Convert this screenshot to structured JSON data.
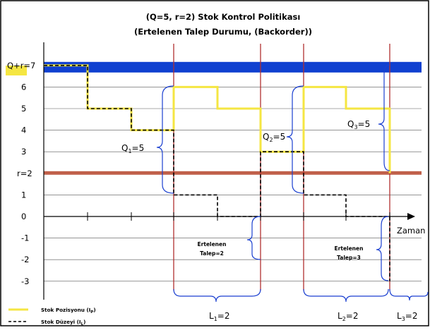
{
  "title": {
    "line1": "(Q=5, r=2) Stok Kontrol Politikası",
    "line2": "(Ertelenen Talep Durumu, (Backorder))"
  },
  "y_axis": {
    "ticks": [
      {
        "value": 7,
        "label": "Q+r=7"
      },
      {
        "value": 6,
        "label": "6"
      },
      {
        "value": 5,
        "label": "5"
      },
      {
        "value": 4,
        "label": "4"
      },
      {
        "value": 3,
        "label": "3"
      },
      {
        "value": 2,
        "label": "r=2"
      },
      {
        "value": 1,
        "label": "1"
      },
      {
        "value": 0,
        "label": "0"
      },
      {
        "value": -1,
        "label": "-1"
      },
      {
        "value": -2,
        "label": "-2"
      },
      {
        "value": -3,
        "label": "-3"
      }
    ]
  },
  "x_axis": {
    "label": "Zaman"
  },
  "reference_lines": {
    "max_level": 7,
    "reorder_point": 2
  },
  "colors": {
    "position_line": "#f5e642",
    "level_line": "#000000",
    "max_band": "#1040d0",
    "reorder_band": "#c0604a",
    "order_lines": "#b03030",
    "brace": "#1a3fd0",
    "highlight_box": "#f5e642"
  },
  "annotations": {
    "q1": {
      "text": "Q",
      "sub": "1",
      "tail": "=5"
    },
    "q2": {
      "text": "Q",
      "sub": "2",
      "tail": "=5"
    },
    "q3": {
      "text": "Q",
      "sub": "3",
      "tail": "=5"
    },
    "backorder1": {
      "line1": "Ertelenen",
      "line2": "Talep=2"
    },
    "backorder2": {
      "line1": "Ertelenen",
      "line2": "Talep=3"
    },
    "l1": {
      "text": "L",
      "sub": "1",
      "tail": "=2"
    },
    "l2": {
      "text": "L",
      "sub": "2",
      "tail": "=2"
    },
    "l3": {
      "text": "L",
      "sub": "3",
      "tail": "=2"
    }
  },
  "legend": [
    {
      "name": "Stok Pozisyonu (I",
      "sub": "P",
      "close": ")",
      "style": "solid-yellow"
    },
    {
      "name": "Stok Düzeyi (I",
      "sub": "L",
      "close": ")",
      "style": "dashed-black"
    }
  ],
  "series": {
    "stock_position": [
      [
        0,
        7
      ],
      [
        1,
        7
      ],
      [
        1,
        5
      ],
      [
        2,
        5
      ],
      [
        2,
        4
      ],
      [
        3,
        4
      ],
      [
        3,
        6
      ],
      [
        4,
        6
      ],
      [
        4,
        5
      ],
      [
        5,
        5
      ],
      [
        5,
        3
      ],
      [
        6,
        3
      ],
      [
        6,
        6
      ],
      [
        7,
        6
      ],
      [
        7,
        5
      ],
      [
        8,
        5
      ],
      [
        8,
        2
      ]
    ],
    "stock_level": [
      [
        0,
        7
      ],
      [
        1,
        7
      ],
      [
        1,
        5
      ],
      [
        2,
        5
      ],
      [
        2,
        4
      ],
      [
        3,
        4
      ],
      [
        3,
        1
      ],
      [
        4,
        1
      ],
      [
        4,
        0
      ],
      [
        5,
        0
      ],
      [
        5,
        3
      ],
      [
        6,
        3
      ],
      [
        6,
        1
      ],
      [
        7,
        1
      ],
      [
        7,
        0
      ],
      [
        8,
        0
      ],
      [
        8,
        -3
      ]
    ]
  }
}
